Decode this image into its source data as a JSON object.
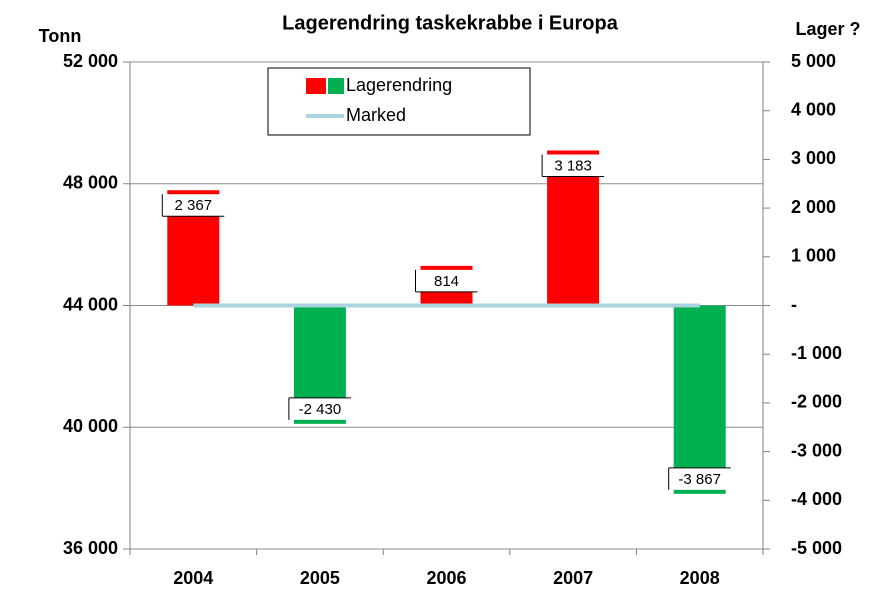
{
  "chart_data": {
    "type": "bar",
    "title": "Lagerendring taskekrabbe i Europa",
    "y_label": "Tonn",
    "y2_label": "Lager ?",
    "categories": [
      "2004",
      "2005",
      "2006",
      "2007",
      "2008"
    ],
    "series": [
      {
        "name": "Lagerendring",
        "type": "bar",
        "axis": "y2",
        "color": "#ff0000",
        "negative_color": "#00b050",
        "values": [
          2367,
          -2430,
          814,
          3183,
          -3867
        ],
        "value_labels": [
          "2 367",
          "-2 430",
          "814",
          "3 183",
          "-3 867"
        ]
      },
      {
        "name": "Marked",
        "type": "line",
        "color": "#a9d3de",
        "values": [
          44000,
          44000,
          44000,
          44000,
          44000
        ]
      }
    ],
    "ylim": [
      36000,
      52000
    ],
    "yticks": [
      {
        "value": 36000,
        "label": "36 000"
      },
      {
        "value": 40000,
        "label": "40 000"
      },
      {
        "value": 44000,
        "label": "44 000"
      },
      {
        "value": 48000,
        "label": "48 000"
      },
      {
        "value": 52000,
        "label": "52 000"
      }
    ],
    "y2lim": [
      -5000,
      5000
    ],
    "y2ticks": [
      {
        "value": -5000,
        "label": "-5 000"
      },
      {
        "value": -4000,
        "label": "-4 000"
      },
      {
        "value": -3000,
        "label": "-3 000"
      },
      {
        "value": -2000,
        "label": "-2 000"
      },
      {
        "value": -1000,
        "label": "-1 000"
      },
      {
        "value": 0,
        "label": "-"
      },
      {
        "value": 1000,
        "label": "1 000"
      },
      {
        "value": 2000,
        "label": "2 000"
      },
      {
        "value": 3000,
        "label": "3 000"
      },
      {
        "value": 4000,
        "label": "4 000"
      },
      {
        "value": 5000,
        "label": "5 000"
      }
    ],
    "grid": true,
    "legend": "top"
  }
}
